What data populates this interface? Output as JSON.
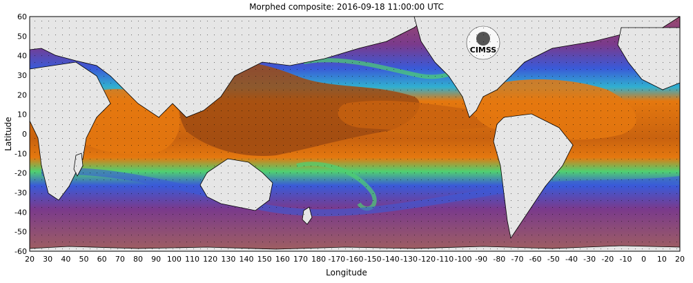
{
  "title": "Morphed composite: 2016-09-18 11:00:00 UTC",
  "axes": {
    "xlabel": "Longitude",
    "ylabel": "Latitude",
    "x_ticks": [
      "20",
      "30",
      "40",
      "50",
      "60",
      "70",
      "80",
      "90",
      "100",
      "110",
      "120",
      "130",
      "140",
      "150",
      "160",
      "170",
      "180",
      "-170",
      "-160",
      "-150",
      "-140",
      "-130",
      "-120",
      "-110",
      "-100",
      "-90",
      "-80",
      "-70",
      "-60",
      "-50",
      "-40",
      "-30",
      "-20",
      "-10",
      "0",
      "10",
      "20"
    ],
    "y_ticks": [
      "60",
      "50",
      "40",
      "30",
      "20",
      "10",
      "0",
      "-10",
      "-20",
      "-30",
      "-40",
      "-50",
      "-60"
    ]
  },
  "logo_text": "CIMSS",
  "colors": {
    "land": "#e6e6e6",
    "coast": "#000000",
    "very_wet": "#9e4a12",
    "wet": "#e5780f",
    "moist": "#f0c020",
    "mid": "#4fd070",
    "lowmid": "#30b0d0",
    "dry": "#3a5ad8",
    "very_dry": "#7a3a8c",
    "polar": "#9a5a6a"
  }
}
